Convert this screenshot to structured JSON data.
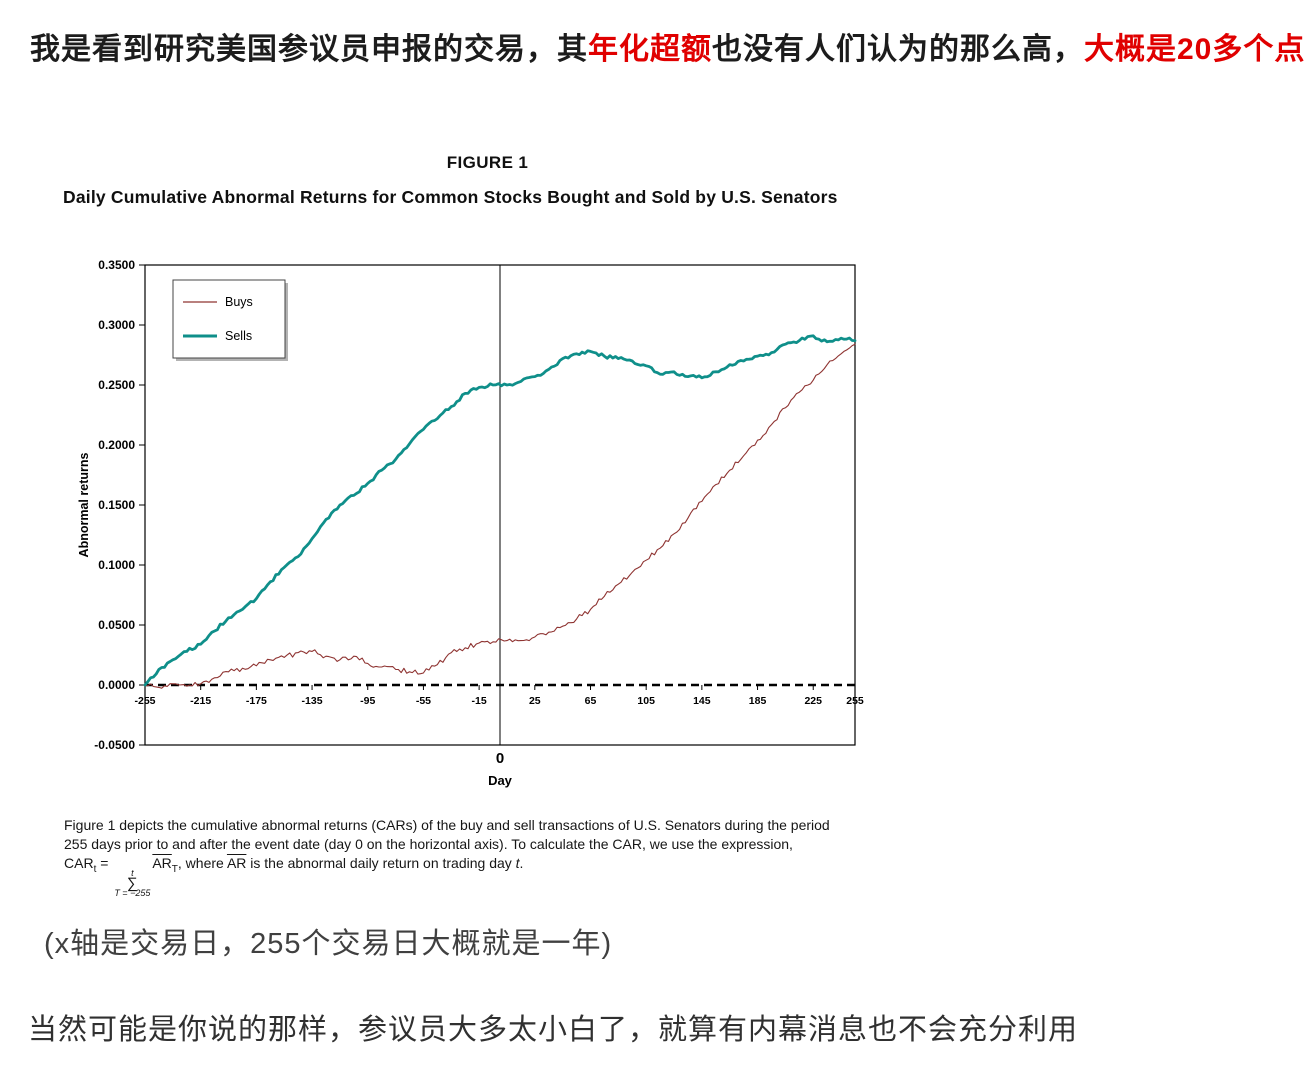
{
  "header": {
    "seg1": "我是看到研究美国参议员申报的交易，其",
    "seg2_red": "年化超额",
    "seg3": "也没有人们认为的那么高，",
    "seg4_red": "大概是20多个点"
  },
  "figure": {
    "title": "FIGURE 1",
    "subtitle": "Daily Cumulative Abnormal Returns for Common Stocks Bought and Sold by U.S. Senators",
    "caption": {
      "line1": "Figure 1 depicts the cumulative abnormal returns (CARs) of the buy and sell transactions of U.S. Senators during the period",
      "line2": "255 days prior to and after the event date (day 0 on the horizontal axis).  To calculate the CAR, we use the expression,",
      "f_car": "CAR",
      "f_car_sub": "t",
      "f_eq": " = ",
      "f_sum_sup": "t",
      "f_sum": "∑",
      "f_sum_sub": "T = −255",
      "f_ar": "AR",
      "f_ar_sub": "T",
      "f_where": ", where ",
      "f_ar2": "AR",
      "f_tail": " is the abnormal daily return on trading day ",
      "f_t": "t",
      "f_end": "."
    }
  },
  "notes": {
    "x_axis_note": "(x轴是交易日，255个交易日大概就是一年)",
    "bottom_comment": "当然可能是你说的那样，参议员大多太小白了，就算有内幕消息也不会充分利用"
  },
  "colors": {
    "red_text": "#e00000",
    "buys_line": "#8f3432",
    "sells_line": "#0f8f8a"
  },
  "chart_data": {
    "type": "line",
    "title": "FIGURE 1",
    "subtitle": "Daily Cumulative Abnormal Returns for Common Stocks Bought and Sold by U.S. Senators",
    "xlabel": "Day",
    "ylabel": "Abnormal returns",
    "xlim": [
      -255,
      255
    ],
    "ylim": [
      -0.05,
      0.35
    ],
    "x_ticks": [
      -255,
      -215,
      -175,
      -135,
      -95,
      -55,
      -15,
      25,
      65,
      105,
      145,
      185,
      225,
      255
    ],
    "y_tick_labels": [
      "0.3500",
      "0.3000",
      "0.2500",
      "0.2000",
      "0.1500",
      "0.1000",
      "0.0500",
      "0.0000",
      "-0.0500"
    ],
    "event_label": "0",
    "legend_position": "top-left-inside",
    "grid": false,
    "zero_line_style": "bold-dashed",
    "x": [
      -255,
      -245,
      -235,
      -225,
      -215,
      -205,
      -195,
      -185,
      -175,
      -165,
      -155,
      -145,
      -135,
      -125,
      -115,
      -105,
      -95,
      -85,
      -75,
      -65,
      -55,
      -45,
      -35,
      -25,
      -15,
      -5,
      5,
      15,
      25,
      35,
      45,
      55,
      65,
      75,
      85,
      95,
      105,
      115,
      125,
      135,
      145,
      155,
      165,
      175,
      185,
      195,
      205,
      215,
      225,
      235,
      245,
      255
    ],
    "series": [
      {
        "name": "Buys",
        "color": "#8f3432",
        "values": [
          0.0,
          -0.002,
          0.001,
          -0.001,
          0.001,
          0.006,
          0.011,
          0.014,
          0.016,
          0.021,
          0.023,
          0.027,
          0.028,
          0.024,
          0.021,
          0.024,
          0.018,
          0.015,
          0.013,
          0.011,
          0.01,
          0.017,
          0.027,
          0.031,
          0.035,
          0.036,
          0.037,
          0.037,
          0.04,
          0.044,
          0.049,
          0.055,
          0.063,
          0.074,
          0.084,
          0.094,
          0.104,
          0.114,
          0.126,
          0.139,
          0.153,
          0.167,
          0.179,
          0.191,
          0.204,
          0.217,
          0.231,
          0.244,
          0.254,
          0.267,
          0.276,
          0.284
        ]
      },
      {
        "name": "Sells",
        "color": "#0f8f8a",
        "values": [
          0.0,
          0.013,
          0.021,
          0.028,
          0.034,
          0.045,
          0.056,
          0.063,
          0.072,
          0.086,
          0.098,
          0.107,
          0.122,
          0.138,
          0.15,
          0.158,
          0.168,
          0.179,
          0.188,
          0.201,
          0.213,
          0.222,
          0.232,
          0.243,
          0.248,
          0.25,
          0.25,
          0.253,
          0.257,
          0.263,
          0.272,
          0.276,
          0.278,
          0.274,
          0.272,
          0.27,
          0.266,
          0.259,
          0.261,
          0.257,
          0.256,
          0.261,
          0.267,
          0.27,
          0.274,
          0.277,
          0.284,
          0.287,
          0.291,
          0.286,
          0.289,
          0.287
        ]
      }
    ]
  }
}
